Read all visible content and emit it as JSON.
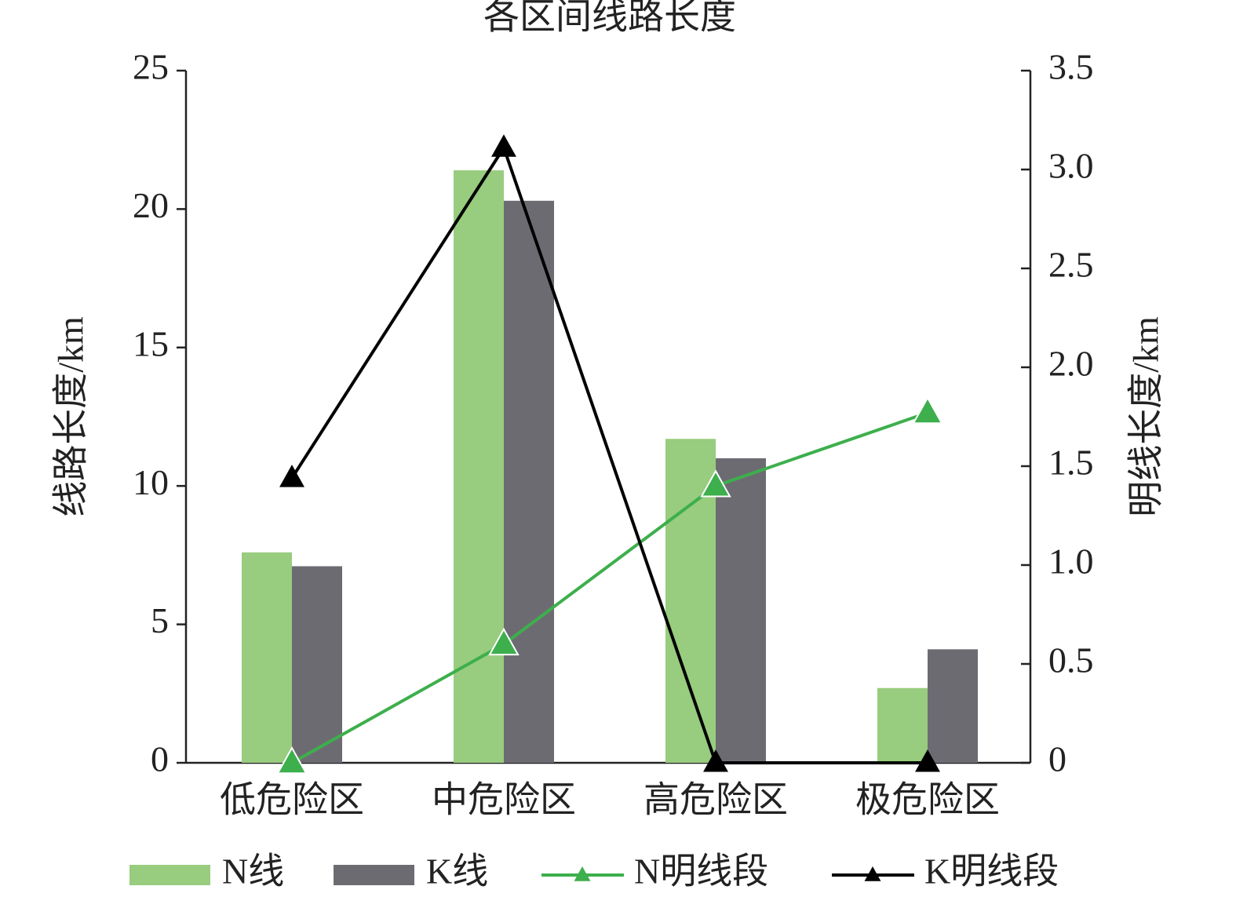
{
  "chart_data": {
    "type": "bar-line",
    "title": "各区间线路长度",
    "y_label": "线路长度/km",
    "y2_label": "明线长度/km",
    "categories": [
      "低危险区",
      "中危险区",
      "高危险区",
      "极危险区"
    ],
    "ylim": [
      0,
      25
    ],
    "yticks": [
      0,
      5,
      10,
      15,
      20,
      25
    ],
    "y2lim": [
      0,
      3.5
    ],
    "y2ticks": [
      0,
      0.5,
      {
        "value": 1.0,
        "label": "1.0"
      },
      1.5,
      {
        "value": 2.0,
        "label": "2.0"
      },
      2.5,
      {
        "value": 3.0,
        "label": "3.0"
      },
      3.5
    ],
    "series": [
      {
        "name": "N线",
        "kind": "bar",
        "color": "#98cc7e",
        "values": [
          7.6,
          21.4,
          11.7,
          2.7
        ]
      },
      {
        "name": "K线",
        "kind": "bar",
        "color": "#6d6b72",
        "values": [
          7.1,
          20.3,
          11.0,
          4.1
        ]
      },
      {
        "name": "N明线段",
        "kind": "line",
        "axis": "y2",
        "color": "#3daf4c",
        "values": [
          0,
          0.6,
          1.4,
          1.77
        ]
      },
      {
        "name": "K明线段",
        "kind": "line",
        "axis": "y2",
        "color": "#000000",
        "values": [
          1.44,
          3.11,
          0,
          0
        ]
      }
    ]
  }
}
